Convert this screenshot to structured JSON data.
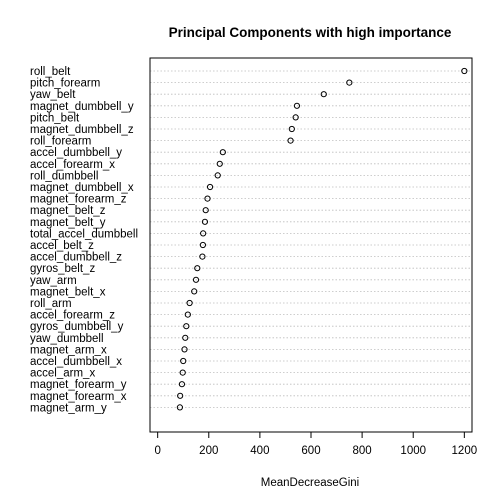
{
  "chart_data": {
    "type": "scatter",
    "title": "Principal Components with high importance",
    "xlabel": "MeanDecreaseGini",
    "ylabel": "",
    "xlim": [
      -30,
      1230
    ],
    "xticks": [
      0,
      200,
      400,
      600,
      800,
      1000,
      1200
    ],
    "xtick_labels": [
      "0",
      "200",
      "400",
      "600",
      "800",
      "1000",
      "1200"
    ],
    "grid": "dotted horizontal lines per variable",
    "marker": "open circle",
    "categories": [
      "roll_belt",
      "pitch_forearm",
      "yaw_belt",
      "magnet_dumbbell_y",
      "pitch_belt",
      "magnet_dumbbell_z",
      "roll_forearm",
      "accel_dumbbell_y",
      "accel_forearm_x",
      "roll_dumbbell",
      "magnet_dumbbell_x",
      "magnet_forearm_z",
      "magnet_belt_z",
      "magnet_belt_y",
      "total_accel_dumbbell",
      "accel_belt_z",
      "accel_dumbbell_z",
      "gyros_belt_z",
      "yaw_arm",
      "magnet_belt_x",
      "roll_arm",
      "accel_forearm_z",
      "gyros_dumbbell_y",
      "yaw_dumbbell",
      "magnet_arm_x",
      "accel_dumbbell_x",
      "accel_arm_x",
      "magnet_forearm_y",
      "magnet_forearm_x",
      "magnet_arm_y"
    ],
    "values": [
      1200,
      750,
      650,
      545,
      540,
      525,
      520,
      255,
      243,
      235,
      205,
      195,
      188,
      185,
      178,
      177,
      175,
      155,
      150,
      143,
      125,
      118,
      112,
      108,
      105,
      100,
      98,
      95,
      88,
      87
    ]
  }
}
